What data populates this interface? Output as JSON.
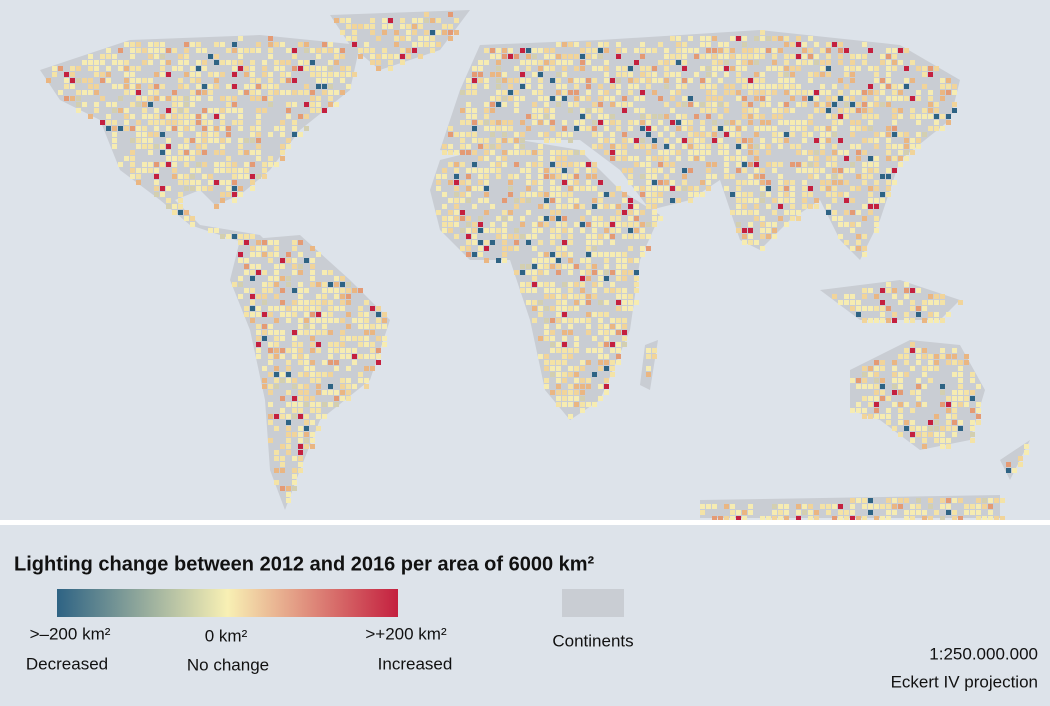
{
  "map": {
    "title": "Lighting change between 2012 and 2016 per area of 6000 km²",
    "legend": {
      "colors": [
        "#2e6384",
        "#f8f0b4",
        "#c4203f"
      ],
      "stops": [
        {
          "label": ">–200 km²",
          "caption": "Decreased"
        },
        {
          "label": "0 km²",
          "caption": "No change"
        },
        {
          "label": ">+200 km²",
          "caption": "Increased"
        }
      ],
      "continents_label": "Continents"
    },
    "scale": "1:250.000.000",
    "projection": "Eckert IV projection"
  }
}
